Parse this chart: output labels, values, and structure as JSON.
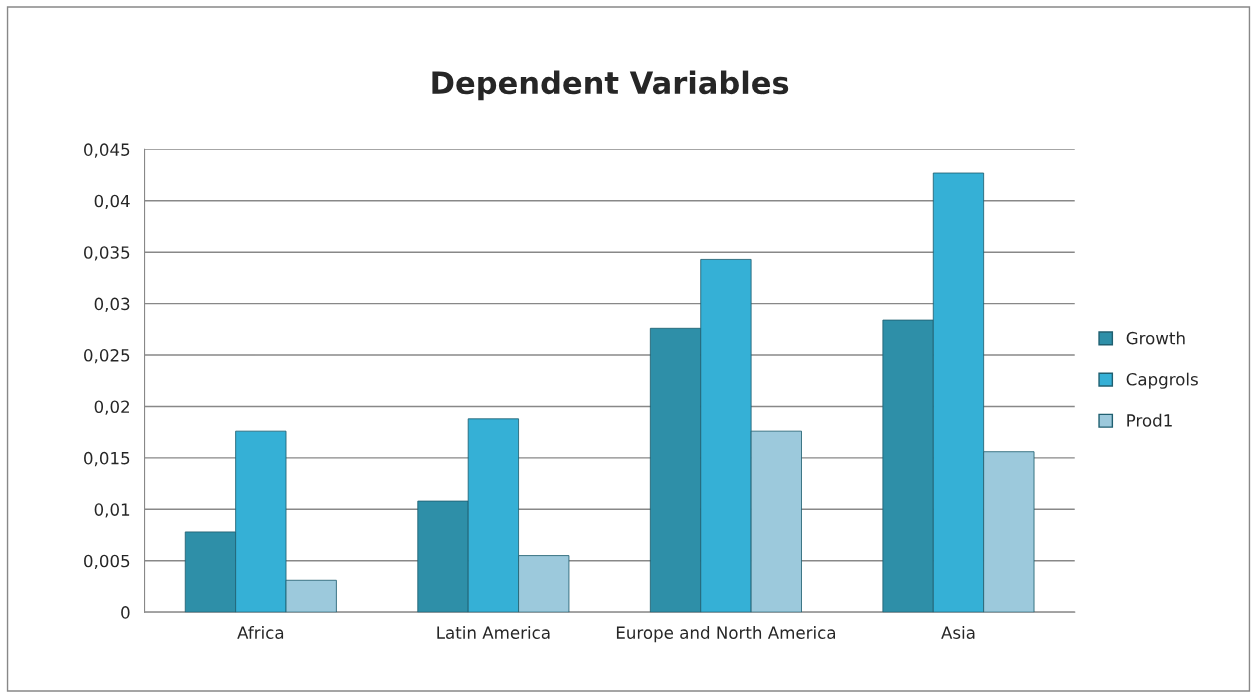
{
  "chart_data": {
    "type": "bar",
    "title": "Dependent Variables",
    "categories": [
      "Africa",
      "Latin America",
      "Europe and North America",
      "Asia"
    ],
    "series": [
      {
        "name": "Growth",
        "color": "#2e8fa8",
        "values": [
          0.0078,
          0.0108,
          0.0276,
          0.0284
        ]
      },
      {
        "name": "Capgrols",
        "color": "#35b0d6",
        "values": [
          0.0176,
          0.0188,
          0.0343,
          0.0427
        ]
      },
      {
        "name": "Prod1",
        "color": "#9cc9dc",
        "values": [
          0.0031,
          0.0055,
          0.0176,
          0.0156
        ]
      }
    ],
    "ylim": [
      0,
      0.045
    ],
    "yticks": [
      0,
      {
        "value": 0.005,
        "label": "0,005"
      },
      {
        "value": 0.01,
        "label": "0,01"
      },
      {
        "value": 0.015,
        "label": "0,015"
      },
      {
        "value": 0.02,
        "label": "0,02"
      },
      {
        "value": 0.025,
        "label": "0,025"
      },
      {
        "value": 0.03,
        "label": "0,03"
      },
      {
        "value": 0.035,
        "label": "0,035"
      },
      {
        "value": 0.04,
        "label": "0,04"
      },
      {
        "value": 0.045,
        "label": "0,045"
      }
    ],
    "grid": "y",
    "legend": "right"
  }
}
